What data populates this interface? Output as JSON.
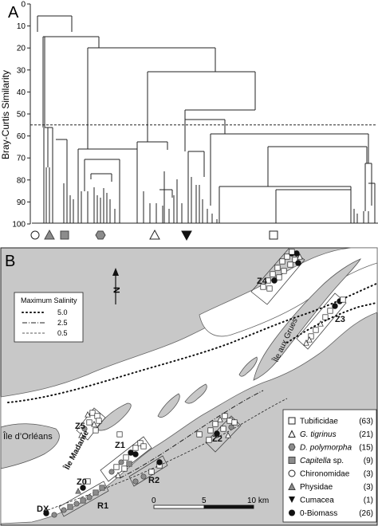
{
  "panel_a": {
    "label": "A",
    "ylabel": "Bray-Curtis Similarity",
    "ticks": [
      "0",
      "10",
      "20",
      "30",
      "40",
      "50",
      "60",
      "70",
      "80",
      "90",
      "100"
    ],
    "cut_level": 55,
    "group_markers": [
      {
        "shape": "circle-open",
        "name": "chironomidae-marker"
      },
      {
        "shape": "triangle-gray",
        "name": "physidae-marker"
      },
      {
        "shape": "square-gray",
        "name": "capitella-marker"
      },
      {
        "shape": "hexagon-gray",
        "name": "d-polymorpha-marker"
      },
      {
        "shape": "triangle-open",
        "name": "g-tigrinus-marker"
      },
      {
        "shape": "triangle-black-down",
        "name": "cumacea-marker"
      },
      {
        "shape": "square-open",
        "name": "tubificidae-marker"
      }
    ]
  },
  "panel_b": {
    "label": "B",
    "north": "N",
    "salinity_legend": {
      "title": "Maximum Salinity",
      "items": [
        {
          "value": "5.0",
          "style": "dotted-heavy"
        },
        {
          "value": "2.5",
          "style": "dash-dot"
        },
        {
          "value": "0.5",
          "style": "dashed-fine"
        }
      ]
    },
    "places": {
      "orleans": "Île d’Orléans",
      "madame": "Île Madame",
      "grues": "Île aux Grues"
    },
    "zones": [
      "Z0",
      "Z1",
      "Z2",
      "Z3",
      "Z4",
      "Z5",
      "R1",
      "R2",
      "DX"
    ],
    "scale": {
      "ticks": [
        "0",
        "5",
        "10 km"
      ]
    },
    "taxa_legend": [
      {
        "name": "Tubificidae",
        "count": "(63)",
        "italic": false,
        "symbol": "square-open"
      },
      {
        "name": "G. tigrinus",
        "count": "(21)",
        "italic": true,
        "symbol": "triangle-open"
      },
      {
        "name": "D. polymorpha",
        "count": "(15)",
        "italic": true,
        "symbol": "hexagon-gray"
      },
      {
        "name": "Capitella",
        "suffix": " sp.",
        "count": "(9)",
        "italic": true,
        "symbol": "square-gray"
      },
      {
        "name": "Chironomidae",
        "count": "(3)",
        "italic": false,
        "symbol": "circle-open"
      },
      {
        "name": "Physidae",
        "count": "(3)",
        "italic": false,
        "symbol": "triangle-gray"
      },
      {
        "name": "Cumacea",
        "count": "(1)",
        "italic": false,
        "symbol": "triangle-black-down"
      },
      {
        "name": "0-Biomass",
        "count": "(26)",
        "italic": false,
        "symbol": "circle-black"
      }
    ]
  },
  "colors": {
    "land": "#c8c8c8",
    "water": "#ffffff",
    "ink": "#222222",
    "symbol_gray": "#8c8c8c"
  }
}
